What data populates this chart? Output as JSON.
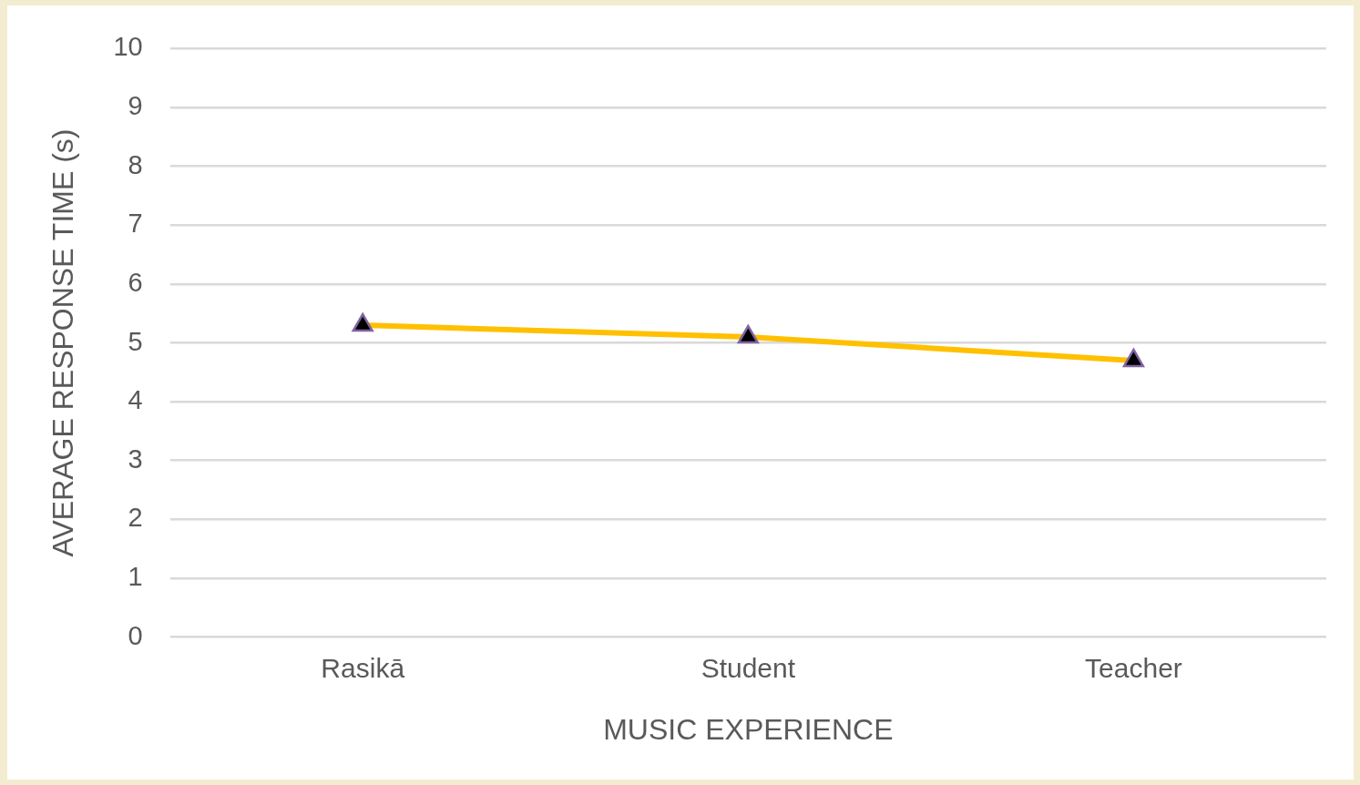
{
  "chart_data": {
    "type": "line",
    "xlabel": "MUSIC EXPERIENCE",
    "ylabel": "AVERAGE RESPONSE TIME (s)",
    "categories": [
      "Rasikā",
      "Student",
      "Teacher"
    ],
    "series": [
      {
        "color": "#ffc000",
        "values": [
          5.3,
          5.1,
          4.7
        ]
      }
    ],
    "ylim": [
      0,
      10
    ],
    "yticks": [
      0,
      1,
      2,
      3,
      4,
      5,
      6,
      7,
      8,
      9,
      10
    ],
    "grid": "y",
    "legend": false,
    "marker": "triangle",
    "line_style": "solid"
  }
}
